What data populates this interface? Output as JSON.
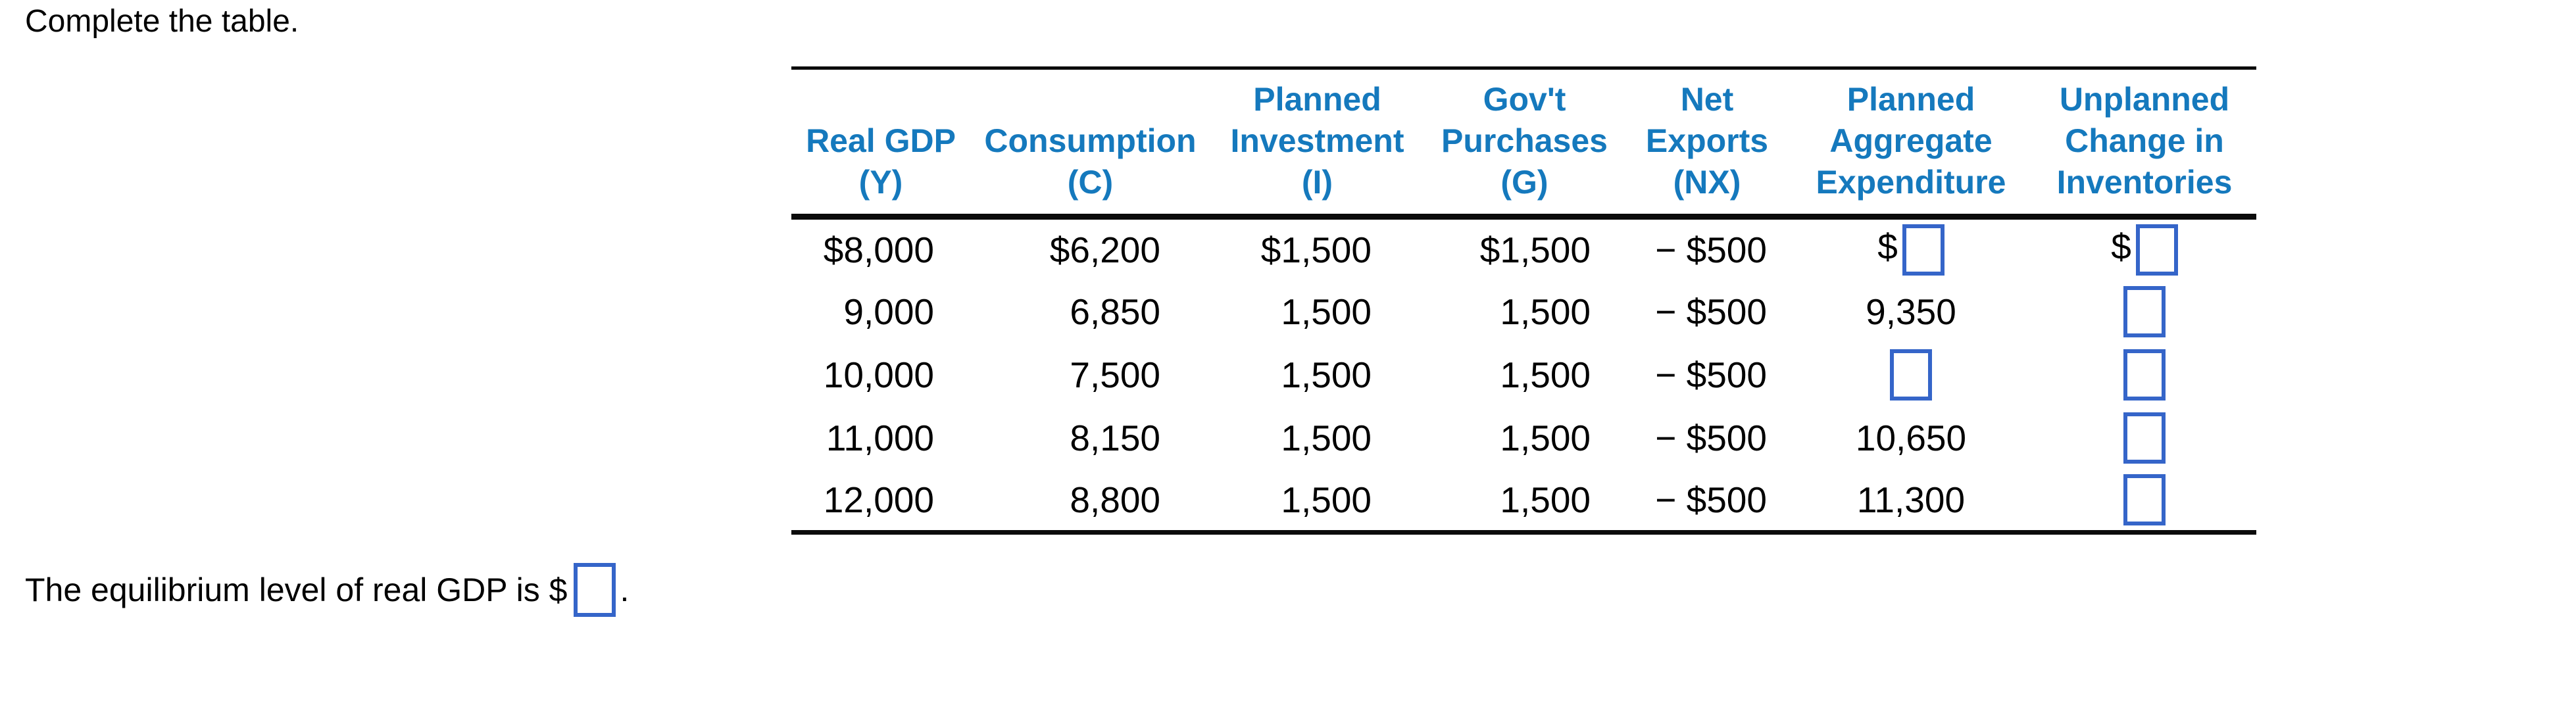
{
  "title": "Complete the table.",
  "colors": {
    "header_text_blue": "#1579bd",
    "input_box_border_blue": "#3565c9",
    "body_text": "#000000",
    "rule_black": "#0b0b0b"
  },
  "table": {
    "header_lines": [
      [
        "",
        "Real GDP",
        "(Y)"
      ],
      [
        "",
        "Consumption",
        "(C)"
      ],
      [
        "Planned",
        "Investment",
        "(I)"
      ],
      [
        "Gov't",
        "Purchases",
        "(G)"
      ],
      [
        "Net",
        "Exports",
        "(NX)"
      ],
      [
        "Planned",
        "Aggregate",
        "Expenditure"
      ],
      [
        "Unplanned",
        "Change in",
        "Inventories"
      ]
    ],
    "rows": [
      {
        "y": "$8,000",
        "c": "$6,200",
        "i": "$1,500",
        "g": "$1,500",
        "nx": "− $500",
        "pae_prefix": "$",
        "uci_prefix": "$"
      },
      {
        "y": "9,000",
        "c": "6,850",
        "i": "1,500",
        "g": "1,500",
        "nx": "− $500",
        "pae_text": "9,350"
      },
      {
        "y": "10,000",
        "c": "7,500",
        "i": "1,500",
        "g": "1,500",
        "nx": "− $500"
      },
      {
        "y": "11,000",
        "c": "8,150",
        "i": "1,500",
        "g": "1,500",
        "nx": "− $500",
        "pae_text": "10,650"
      },
      {
        "y": "12,000",
        "c": "8,800",
        "i": "1,500",
        "g": "1,500",
        "nx": "− $500",
        "pae_text": "11,300"
      }
    ]
  },
  "question": {
    "before": "The equilibrium level of real GDP is $",
    "after": "."
  }
}
